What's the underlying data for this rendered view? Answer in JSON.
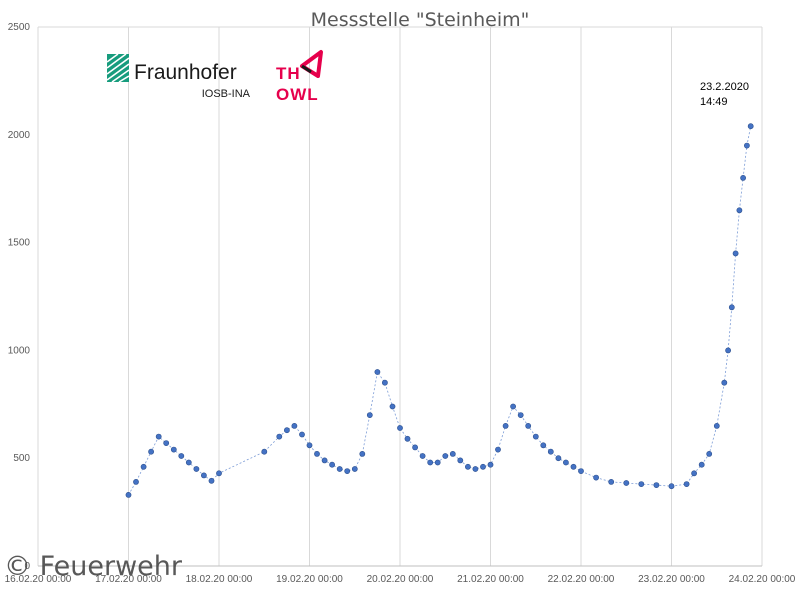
{
  "chart_data": {
    "type": "scatter",
    "title": "Messstelle \"Steinheim\"",
    "xlabel": "",
    "ylabel": "",
    "ylim": [
      0,
      2500
    ],
    "yticks": [
      0,
      500,
      1000,
      1500,
      2000,
      2500
    ],
    "xlim": [
      "16.02.20 00:00",
      "24.02.20 00:00"
    ],
    "xticks": [
      "16.02.20 00:00",
      "17.02.20 00:00",
      "18.02.20 00:00",
      "19.02.20 00:00",
      "20.02.20 00:00",
      "21.02.20 00:00",
      "22.02.20 00:00",
      "23.02.20 00:00",
      "24.02.20 00:00"
    ],
    "grid": "vertical",
    "marker_color": "#4472C4",
    "series": [
      {
        "points": [
          [
            "17.02.20 00:00",
            330
          ],
          [
            "17.02.20 02:00",
            390
          ],
          [
            "17.02.20 04:00",
            460
          ],
          [
            "17.02.20 06:00",
            530
          ],
          [
            "17.02.20 08:00",
            600
          ],
          [
            "17.02.20 10:00",
            570
          ],
          [
            "17.02.20 12:00",
            540
          ],
          [
            "17.02.20 14:00",
            510
          ],
          [
            "17.02.20 16:00",
            480
          ],
          [
            "17.02.20 18:00",
            450
          ],
          [
            "17.02.20 20:00",
            420
          ],
          [
            "17.02.20 22:00",
            395
          ],
          [
            "18.02.20 00:00",
            430
          ],
          [
            "18.02.20 12:00",
            530
          ],
          [
            "18.02.20 16:00",
            600
          ],
          [
            "18.02.20 18:00",
            630
          ],
          [
            "18.02.20 20:00",
            650
          ],
          [
            "18.02.20 22:00",
            610
          ],
          [
            "19.02.20 00:00",
            560
          ],
          [
            "19.02.20 02:00",
            520
          ],
          [
            "19.02.20 04:00",
            490
          ],
          [
            "19.02.20 06:00",
            470
          ],
          [
            "19.02.20 08:00",
            450
          ],
          [
            "19.02.20 10:00",
            440
          ],
          [
            "19.02.20 12:00",
            450
          ],
          [
            "19.02.20 14:00",
            520
          ],
          [
            "19.02.20 16:00",
            700
          ],
          [
            "19.02.20 18:00",
            900
          ],
          [
            "19.02.20 20:00",
            850
          ],
          [
            "19.02.20 22:00",
            740
          ],
          [
            "20.02.20 00:00",
            640
          ],
          [
            "20.02.20 02:00",
            590
          ],
          [
            "20.02.20 04:00",
            550
          ],
          [
            "20.02.20 06:00",
            510
          ],
          [
            "20.02.20 08:00",
            480
          ],
          [
            "20.02.20 10:00",
            480
          ],
          [
            "20.02.20 12:00",
            510
          ],
          [
            "20.02.20 14:00",
            520
          ],
          [
            "20.02.20 16:00",
            490
          ],
          [
            "20.02.20 18:00",
            460
          ],
          [
            "20.02.20 20:00",
            450
          ],
          [
            "20.02.20 22:00",
            460
          ],
          [
            "21.02.20 00:00",
            470
          ],
          [
            "21.02.20 02:00",
            540
          ],
          [
            "21.02.20 04:00",
            650
          ],
          [
            "21.02.20 06:00",
            740
          ],
          [
            "21.02.20 08:00",
            700
          ],
          [
            "21.02.20 10:00",
            650
          ],
          [
            "21.02.20 12:00",
            600
          ],
          [
            "21.02.20 14:00",
            560
          ],
          [
            "21.02.20 16:00",
            530
          ],
          [
            "21.02.20 18:00",
            500
          ],
          [
            "21.02.20 20:00",
            480
          ],
          [
            "21.02.20 22:00",
            460
          ],
          [
            "22.02.20 00:00",
            440
          ],
          [
            "22.02.20 04:00",
            410
          ],
          [
            "22.02.20 08:00",
            390
          ],
          [
            "22.02.20 12:00",
            385
          ],
          [
            "22.02.20 16:00",
            380
          ],
          [
            "22.02.20 20:00",
            375
          ],
          [
            "23.02.20 00:00",
            370
          ],
          [
            "23.02.20 04:00",
            380
          ],
          [
            "23.02.20 06:00",
            430
          ],
          [
            "23.02.20 08:00",
            470
          ],
          [
            "23.02.20 10:00",
            520
          ],
          [
            "23.02.20 12:00",
            650
          ],
          [
            "23.02.20 14:00",
            850
          ],
          [
            "23.02.20 15:00",
            1000
          ],
          [
            "23.02.20 16:00",
            1200
          ],
          [
            "23.02.20 17:00",
            1450
          ],
          [
            "23.02.20 18:00",
            1650
          ],
          [
            "23.02.20 19:00",
            1800
          ],
          [
            "23.02.20 20:00",
            1950
          ],
          [
            "23.02.20 21:00",
            2040
          ]
        ]
      }
    ],
    "annotations": [
      "23.2.2020",
      "14:49"
    ]
  },
  "logos": {
    "fraunhofer_name": "Fraunhofer",
    "fraunhofer_sub": "IOSB-INA",
    "th_owl_line1": "TH",
    "th_owl_line2": "OWL"
  },
  "watermark": "© Feuerwehr",
  "colors": {
    "marker": "#4472C4",
    "grid": "#d9d9d9",
    "fraunhofer_green": "#179C7D",
    "owl_red": "#E6004C"
  }
}
